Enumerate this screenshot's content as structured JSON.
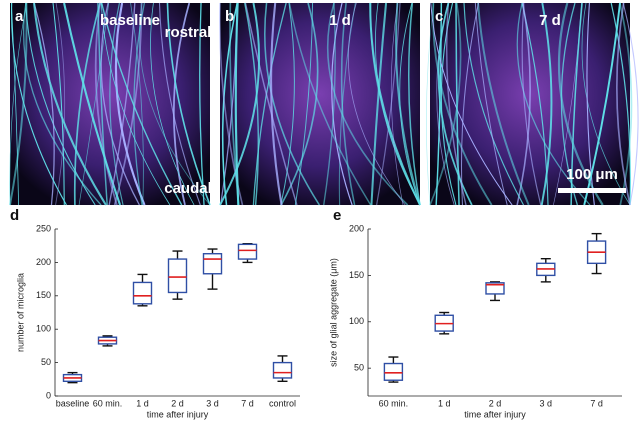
{
  "image_panels": [
    {
      "letter": "a",
      "labels": [
        "baseline",
        "rostral",
        "caudal"
      ]
    },
    {
      "letter": "b",
      "labels": [
        "1 d"
      ]
    },
    {
      "letter": "c",
      "labels": [
        "7 d"
      ],
      "scale_bar": "100 μm"
    }
  ],
  "chart_data": [
    {
      "type": "box",
      "label": "d",
      "ylabel": "number of microglia",
      "xlabel": "time after injury",
      "categories": [
        "baseline",
        "60 min.",
        "1 d",
        "2 d",
        "3 d",
        "7 d",
        "control"
      ],
      "boxes": [
        {
          "min": 20,
          "q1": 22,
          "median": 27,
          "q3": 32,
          "max": 35
        },
        {
          "min": 75,
          "q1": 78,
          "median": 83,
          "q3": 88,
          "max": 90
        },
        {
          "min": 135,
          "q1": 138,
          "median": 150,
          "q3": 170,
          "max": 182
        },
        {
          "min": 145,
          "q1": 155,
          "median": 178,
          "q3": 205,
          "max": 217
        },
        {
          "min": 160,
          "q1": 183,
          "median": 205,
          "q3": 213,
          "max": 220
        },
        {
          "min": 200,
          "q1": 205,
          "median": 218,
          "q3": 227,
          "max": 228
        },
        {
          "min": 22,
          "q1": 27,
          "median": 35,
          "q3": 50,
          "max": 60
        }
      ],
      "box_color": "#2f4fa5",
      "median_color": "#e02020",
      "ylim": [
        0,
        250
      ],
      "yticks": [
        0,
        50,
        100,
        150,
        200,
        250
      ]
    },
    {
      "type": "box",
      "label": "e",
      "ylabel": "size of glial aggregate (μm)",
      "xlabel": "time after injury",
      "categories": [
        "60 min.",
        "1 d",
        "2 d",
        "3 d",
        "7 d"
      ],
      "boxes": [
        {
          "min": 35,
          "q1": 37,
          "median": 45,
          "q3": 55,
          "max": 62
        },
        {
          "min": 87,
          "q1": 90,
          "median": 98,
          "q3": 107,
          "max": 110
        },
        {
          "min": 123,
          "q1": 130,
          "median": 140,
          "q3": 142,
          "max": 143
        },
        {
          "min": 143,
          "q1": 150,
          "median": 157,
          "q3": 163,
          "max": 168
        },
        {
          "min": 152,
          "q1": 163,
          "median": 175,
          "q3": 187,
          "max": 195
        }
      ],
      "box_color": "#2f4fa5",
      "median_color": "#e02020",
      "ylim": [
        20,
        200
      ],
      "yticks": [
        50,
        100,
        150,
        200
      ]
    }
  ]
}
